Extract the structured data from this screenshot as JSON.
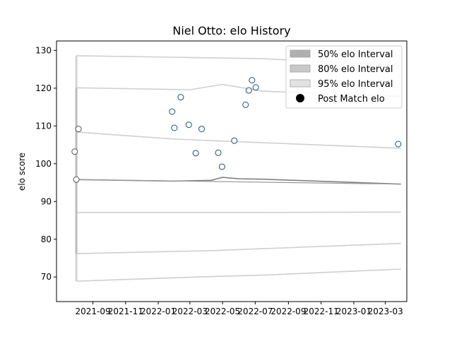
{
  "chart_data": {
    "type": "scatter",
    "title": "Niel Otto: elo History",
    "xlabel": "",
    "ylabel": "elo score",
    "ylim": [
      63.5,
      132.5
    ],
    "yticks": [
      70,
      80,
      90,
      100,
      110,
      120,
      130
    ],
    "xlim": [
      "2021-06-25",
      "2023-04-10"
    ],
    "xticks": [
      "2021-09",
      "2021-11",
      "2022-01",
      "2022-03",
      "2022-05",
      "2022-07",
      "2022-09",
      "2022-11",
      "2023-01",
      "2023-03"
    ],
    "grid": false,
    "legend_position": "top-right",
    "legend": [
      {
        "label": "50% elo Interval",
        "color": "#b0b0b0"
      },
      {
        "label": "80% elo Interval",
        "color": "#c8c8c8"
      },
      {
        "label": "95% elo Interval",
        "color": "#e2e2e2"
      },
      {
        "label": "Post Match elo",
        "color": "#000000"
      }
    ],
    "colors": {
      "points": "#1f4e79",
      "mean_line": "#808080",
      "bands": "#e0e0e0"
    },
    "pre_period_points": [
      {
        "x": "2021-07-29",
        "y": 103.2
      },
      {
        "x": "2021-08-01",
        "y": 95.8
      },
      {
        "x": "2021-08-05",
        "y": 109.2
      }
    ],
    "post_match_points": [
      {
        "x": "2022-01-27",
        "y": 113.8
      },
      {
        "x": "2022-01-31",
        "y": 109.5
      },
      {
        "x": "2022-02-12",
        "y": 117.6
      },
      {
        "x": "2022-02-27",
        "y": 110.3
      },
      {
        "x": "2022-03-12",
        "y": 102.8
      },
      {
        "x": "2022-03-23",
        "y": 109.2
      },
      {
        "x": "2022-04-23",
        "y": 102.9
      },
      {
        "x": "2022-04-30",
        "y": 99.2
      },
      {
        "x": "2022-05-23",
        "y": 106.1
      },
      {
        "x": "2022-06-13",
        "y": 115.6
      },
      {
        "x": "2022-06-19",
        "y": 119.4
      },
      {
        "x": "2022-06-25",
        "y": 122.1
      },
      {
        "x": "2022-07-02",
        "y": 120.2
      },
      {
        "x": "2023-03-25",
        "y": 105.2
      }
    ],
    "mean_line": [
      {
        "x": "2021-08-01",
        "y": 95.8
      },
      {
        "x": "2022-02-01",
        "y": 95.4
      },
      {
        "x": "2022-04-10",
        "y": 95.6
      },
      {
        "x": "2022-05-01",
        "y": 96.4
      },
      {
        "x": "2022-06-01",
        "y": 96.0
      },
      {
        "x": "2022-07-15",
        "y": 95.9
      },
      {
        "x": "2023-03-30",
        "y": 94.6
      }
    ],
    "bands": {
      "upper95": [
        {
          "x": "2021-08-01",
          "y": 128.6
        },
        {
          "x": "2022-07-15",
          "y": 127.8
        },
        {
          "x": "2023-03-30",
          "y": 126.0
        }
      ],
      "upper80": [
        {
          "x": "2021-08-01",
          "y": 120.1
        },
        {
          "x": "2022-03-01",
          "y": 119.6
        },
        {
          "x": "2022-05-01",
          "y": 121.0
        },
        {
          "x": "2022-07-15",
          "y": 119.2
        },
        {
          "x": "2023-03-30",
          "y": 117.8
        }
      ],
      "upper50": [
        {
          "x": "2021-08-01",
          "y": 108.4
        },
        {
          "x": "2022-02-01",
          "y": 106.5
        },
        {
          "x": "2023-03-30",
          "y": 104.1
        }
      ],
      "lower50": [
        {
          "x": "2021-08-01",
          "y": 87.1
        },
        {
          "x": "2022-07-15",
          "y": 87.1
        },
        {
          "x": "2023-03-30",
          "y": 87.2
        }
      ],
      "lower80": [
        {
          "x": "2021-08-01",
          "y": 76.2
        },
        {
          "x": "2022-04-15",
          "y": 77.0
        },
        {
          "x": "2022-07-15",
          "y": 77.5
        },
        {
          "x": "2023-03-30",
          "y": 78.9
        }
      ],
      "lower95": [
        {
          "x": "2021-08-01",
          "y": 68.9
        },
        {
          "x": "2022-03-15",
          "y": 70.0
        },
        {
          "x": "2022-07-15",
          "y": 70.5
        },
        {
          "x": "2023-03-30",
          "y": 72.1
        }
      ]
    }
  }
}
